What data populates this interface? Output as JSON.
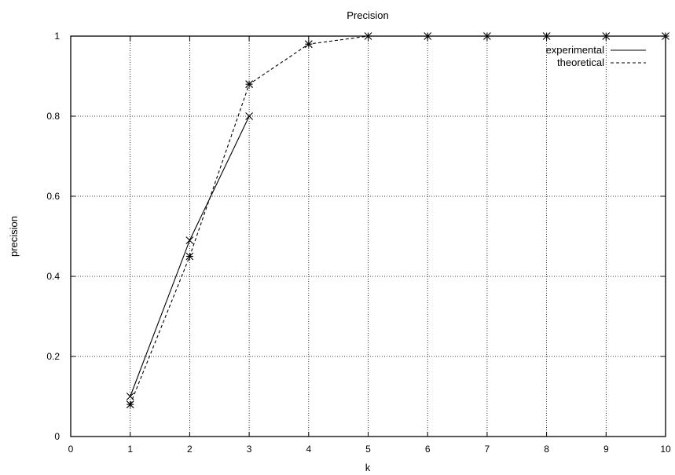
{
  "chart_data": {
    "type": "line",
    "title": "Precision",
    "xlabel": "k",
    "ylabel": "precision",
    "xlim": [
      0,
      10
    ],
    "ylim": [
      0,
      1
    ],
    "xticks": [
      "0",
      "1",
      "2",
      "3",
      "4",
      "5",
      "6",
      "7",
      "8",
      "9",
      "10"
    ],
    "yticks": [
      "0",
      "0.2",
      "0.4",
      "0.6",
      "0.8",
      "1"
    ],
    "grid": true,
    "legend_position": "top-right",
    "series": [
      {
        "name": "experimental",
        "style": "solid",
        "marker": "x",
        "color": "#000000",
        "x": [
          1,
          2,
          3
        ],
        "y": [
          0.1,
          0.49,
          0.8
        ]
      },
      {
        "name": "theoretical",
        "style": "dashed",
        "marker": "star",
        "color": "#000000",
        "x": [
          1,
          2,
          3,
          4,
          5,
          6,
          7,
          8,
          9,
          10
        ],
        "y": [
          0.08,
          0.45,
          0.88,
          0.98,
          1.0,
          1.0,
          1.0,
          1.0,
          1.0,
          1.0
        ]
      }
    ]
  }
}
